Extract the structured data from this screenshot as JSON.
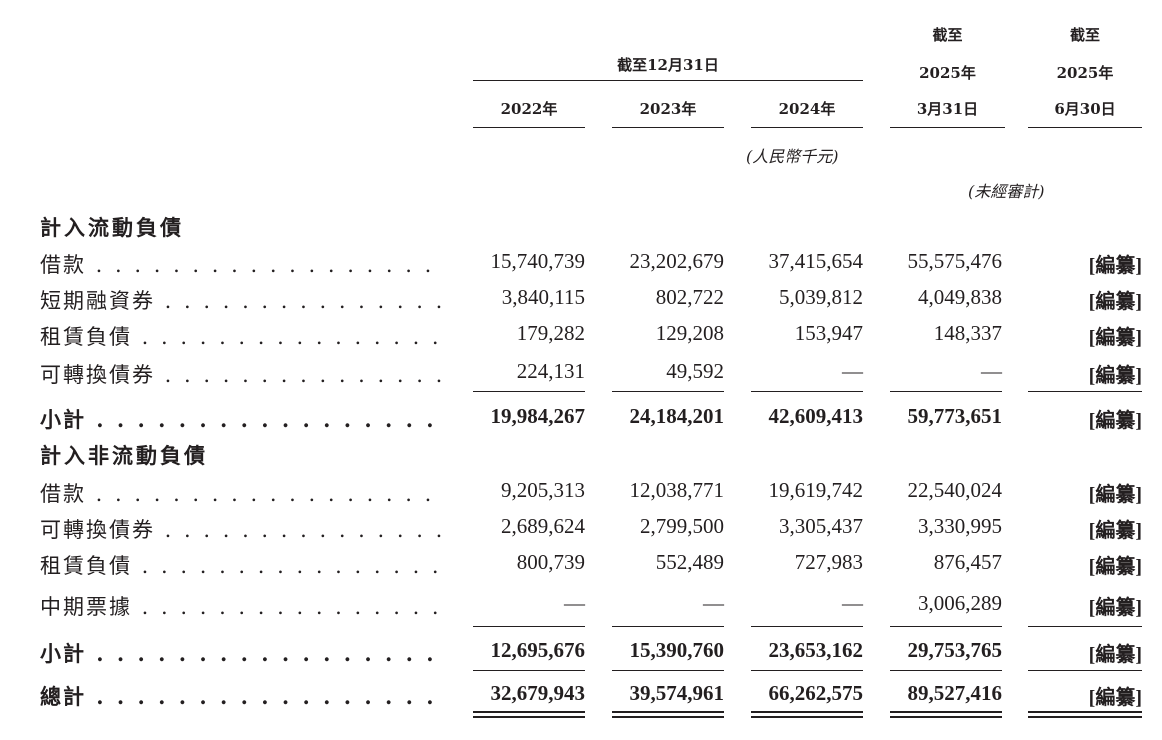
{
  "header": {
    "group_title": "截至12月31日",
    "col_2022": "2022年",
    "col_2023": "2023年",
    "col_2024": "2024年",
    "col_mar": {
      "line1": "截至",
      "line2": "2025年",
      "line3": "3月31日"
    },
    "col_jun": {
      "line1": "截至",
      "line2": "2025年",
      "line3": "6月30日"
    },
    "unit_note": "(人民幣千元)",
    "unaudited_note": "(未經審計)"
  },
  "current": {
    "title": "計入流動負債",
    "rows": [
      {
        "label": "借款",
        "values": [
          "15,740,739",
          "23,202,679",
          "37,415,654",
          "55,575,476",
          "[編纂]"
        ]
      },
      {
        "label": "短期融資券",
        "values": [
          "3,840,115",
          "802,722",
          "5,039,812",
          "4,049,838",
          "[編纂]"
        ]
      },
      {
        "label": "租賃負債",
        "values": [
          "179,282",
          "129,208",
          "153,947",
          "148,337",
          "[編纂]"
        ]
      },
      {
        "label": "可轉換債券",
        "values": [
          "224,131",
          "49,592",
          "—",
          "—",
          "[編纂]"
        ]
      }
    ],
    "subtotal": {
      "label": "小計",
      "values": [
        "19,984,267",
        "24,184,201",
        "42,609,413",
        "59,773,651",
        "[編纂]"
      ]
    }
  },
  "noncurrent": {
    "title": "計入非流動負債",
    "rows": [
      {
        "label": "借款",
        "values": [
          "9,205,313",
          "12,038,771",
          "19,619,742",
          "22,540,024",
          "[編纂]"
        ]
      },
      {
        "label": "可轉換債券",
        "values": [
          "2,689,624",
          "2,799,500",
          "3,305,437",
          "3,330,995",
          "[編纂]"
        ]
      },
      {
        "label": "租賃負債",
        "values": [
          "800,739",
          "552,489",
          "727,983",
          "876,457",
          "[編纂]"
        ]
      },
      {
        "label": "中期票據",
        "values": [
          "—",
          "—",
          "—",
          "3,006,289",
          "[編纂]"
        ]
      }
    ],
    "subtotal": {
      "label": "小計",
      "values": [
        "12,695,676",
        "15,390,760",
        "23,653,162",
        "29,753,765",
        "[編纂]"
      ]
    }
  },
  "total": {
    "label": "總計",
    "values": [
      "32,679,943",
      "39,574,961",
      "66,262,575",
      "89,527,416",
      "[編纂]"
    ]
  }
}
